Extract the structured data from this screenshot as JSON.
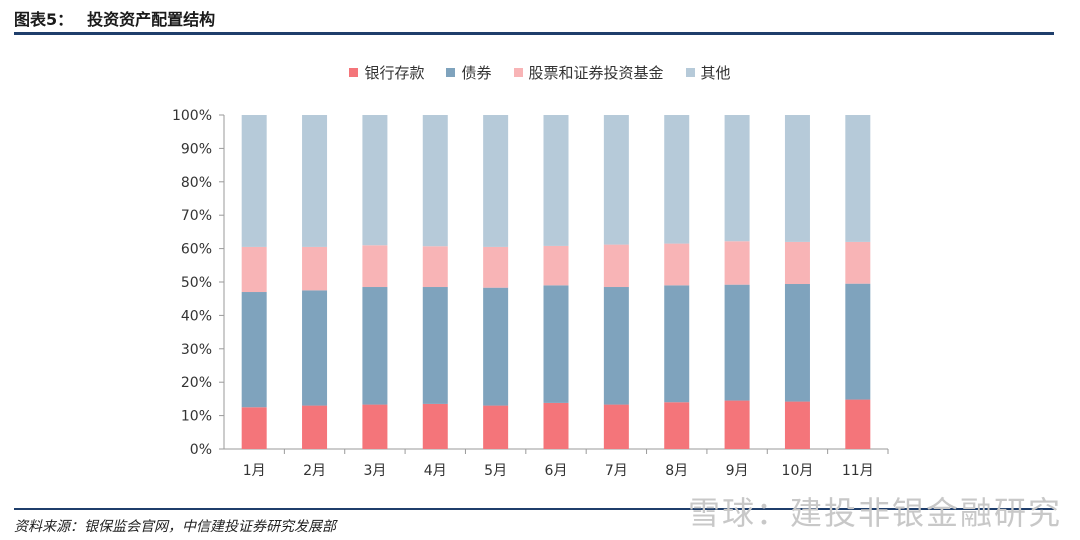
{
  "figure": {
    "number": "图表5：",
    "title": "投资资产配置结构",
    "source": "资料来源：银保监会官网，中信建投证券研究发展部",
    "watermark": "雪球：建投非银金融研究"
  },
  "colors": {
    "rule": "#1f3e6b",
    "series": [
      "#f4757a",
      "#7fa3bd",
      "#f8b4b6",
      "#b6cad9"
    ],
    "axis": "#9a9a9a"
  },
  "chart_data": {
    "type": "bar",
    "stacked": true,
    "percent": true,
    "title": "投资资产配置结构",
    "categories": [
      "1月",
      "2月",
      "3月",
      "4月",
      "5月",
      "6月",
      "7月",
      "8月",
      "9月",
      "10月",
      "11月"
    ],
    "series": [
      {
        "name": "银行存款",
        "values": [
          12.5,
          13.0,
          13.3,
          13.5,
          13.0,
          13.8,
          13.3,
          14.0,
          14.5,
          14.2,
          14.8
        ]
      },
      {
        "name": "债券",
        "values": [
          34.5,
          34.5,
          35.2,
          35.0,
          35.3,
          35.2,
          35.2,
          35.0,
          34.7,
          35.2,
          34.7
        ]
      },
      {
        "name": "股票和证券投资基金",
        "values": [
          13.5,
          13.0,
          12.5,
          12.2,
          12.2,
          11.8,
          12.7,
          12.5,
          13.0,
          12.6,
          12.5
        ]
      },
      {
        "name": "其他",
        "values": [
          39.5,
          39.5,
          39.0,
          39.3,
          39.5,
          39.2,
          38.8,
          38.5,
          37.8,
          38.0,
          38.0
        ]
      }
    ],
    "ylim": [
      0,
      100
    ],
    "yticks": [
      "0%",
      "10%",
      "20%",
      "30%",
      "40%",
      "50%",
      "60%",
      "70%",
      "80%",
      "90%",
      "100%"
    ],
    "grid": false,
    "legend_position": "top-center",
    "xlabel": "",
    "ylabel": ""
  }
}
